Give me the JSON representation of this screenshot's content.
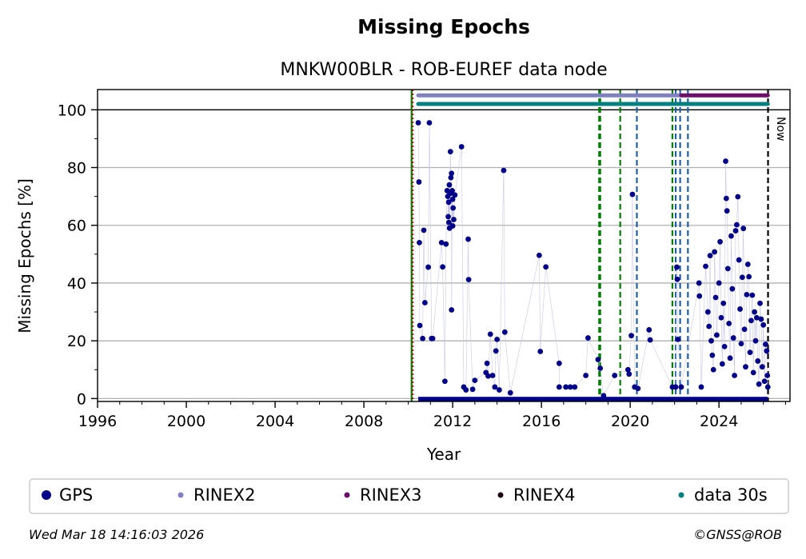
{
  "chart_data": {
    "type": "scatter",
    "title": "Missing Epochs",
    "subtitle": "MNKW00BLR - ROB-EUREF data node",
    "xlabel": "Year",
    "ylabel": "Missing Epochs [%]",
    "xlim": [
      1996,
      2027.2
    ],
    "ylim": [
      -1,
      107
    ],
    "x_ticks": [
      1996,
      2000,
      2004,
      2008,
      2012,
      2016,
      2020,
      2024
    ],
    "y_ticks": [
      0,
      20,
      40,
      60,
      80,
      100
    ],
    "grid": "horizontal",
    "now_label": "Now",
    "now_year": 2026.21,
    "reference_line_y": 100,
    "series": [
      {
        "name": "GPS",
        "color": "#00008b",
        "points": [
          [
            2010.45,
            95.5
          ],
          [
            2010.48,
            75
          ],
          [
            2010.5,
            54
          ],
          [
            2010.52,
            25.3
          ],
          [
            2010.7,
            58.3
          ],
          [
            2010.75,
            33.2
          ],
          [
            2010.65,
            20.8
          ],
          [
            2010.95,
            95.5
          ],
          [
            2010.9,
            45.5
          ],
          [
            2011.05,
            20.8
          ],
          [
            2011.1,
            20.8
          ],
          [
            2011.55,
            45.6
          ],
          [
            2011.5,
            54
          ],
          [
            2011.7,
            53.5
          ],
          [
            2011.65,
            6
          ],
          [
            2011.75,
            72
          ],
          [
            2011.78,
            70
          ],
          [
            2011.82,
            68
          ],
          [
            2011.85,
            74
          ],
          [
            2011.88,
            71
          ],
          [
            2011.8,
            63
          ],
          [
            2011.83,
            61
          ],
          [
            2011.86,
            59
          ],
          [
            2011.9,
            85.5
          ],
          [
            2011.92,
            76.5
          ],
          [
            2011.95,
            78
          ],
          [
            2011.98,
            72
          ],
          [
            2012.0,
            69
          ],
          [
            2012.02,
            66
          ],
          [
            2012.05,
            62
          ],
          [
            2012.0,
            59.8
          ],
          [
            2011.95,
            30.7
          ],
          [
            2012.1,
            70.5
          ],
          [
            2012.4,
            87.2
          ],
          [
            2012.7,
            55.2
          ],
          [
            2012.72,
            41.2
          ],
          [
            2012.5,
            4
          ],
          [
            2012.6,
            3
          ],
          [
            2012.9,
            3.2
          ],
          [
            2013.0,
            6.3
          ],
          [
            2013.5,
            9
          ],
          [
            2013.55,
            12.2
          ],
          [
            2013.6,
            7.8
          ],
          [
            2013.7,
            22.3
          ],
          [
            2013.8,
            8
          ],
          [
            2013.95,
            16.5
          ],
          [
            2014.0,
            20.5
          ],
          [
            2014.3,
            79
          ],
          [
            2014.35,
            23
          ],
          [
            2013.9,
            4
          ],
          [
            2014.1,
            3
          ],
          [
            2014.6,
            2
          ],
          [
            2015.9,
            49.6
          ],
          [
            2015.95,
            16.3
          ],
          [
            2016.2,
            45.6
          ],
          [
            2016.8,
            12.2
          ],
          [
            2016.8,
            4
          ],
          [
            2017.1,
            4
          ],
          [
            2017.3,
            4
          ],
          [
            2017.5,
            4
          ],
          [
            2018.1,
            21
          ],
          [
            2018.0,
            8
          ],
          [
            2018.55,
            13.5
          ],
          [
            2018.65,
            10.5
          ],
          [
            2018.8,
            1
          ],
          [
            2019.3,
            8
          ],
          [
            2019.9,
            10
          ],
          [
            2019.95,
            8.5
          ],
          [
            2020.1,
            70.7
          ],
          [
            2020.05,
            21.8
          ],
          [
            2020.2,
            4
          ],
          [
            2020.35,
            3.5
          ],
          [
            2020.85,
            23.8
          ],
          [
            2020.9,
            20.3
          ],
          [
            2021.9,
            4
          ],
          [
            2022.05,
            4
          ],
          [
            2022.1,
            45.5
          ],
          [
            2022.12,
            41.3
          ],
          [
            2022.15,
            20.5
          ],
          [
            2022.3,
            4
          ],
          [
            2023.1,
            40
          ],
          [
            2023.12,
            35.5
          ],
          [
            2023.2,
            4
          ],
          [
            2023.4,
            45.8
          ],
          [
            2023.6,
            49.5
          ],
          [
            2023.8,
            50.8
          ],
          [
            2024.05,
            54.3
          ],
          [
            2024.3,
            82.2
          ],
          [
            2024.33,
            69.3
          ],
          [
            2024.36,
            65
          ],
          [
            2024.55,
            56.3
          ],
          [
            2024.8,
            60.2
          ],
          [
            2024.75,
            58.1
          ],
          [
            2024.85,
            69.9
          ],
          [
            2025.1,
            58.9
          ],
          [
            2025.3,
            46.5
          ],
          [
            2025.35,
            42.2
          ],
          [
            2025.5,
            35.8
          ],
          [
            2025.6,
            30
          ],
          [
            2025.7,
            28
          ],
          [
            2025.85,
            33
          ],
          [
            2025.9,
            27.5
          ],
          [
            2026.0,
            25.5
          ],
          [
            2026.1,
            18.8
          ],
          [
            2026.15,
            16.5
          ],
          [
            2026.18,
            8
          ],
          [
            2026.2,
            4
          ],
          [
            2023.5,
            30
          ],
          [
            2023.55,
            25
          ],
          [
            2023.65,
            20
          ],
          [
            2023.7,
            15
          ],
          [
            2023.75,
            10
          ],
          [
            2023.85,
            35
          ],
          [
            2023.9,
            22
          ],
          [
            2024.0,
            40
          ],
          [
            2024.1,
            28
          ],
          [
            2024.15,
            12
          ],
          [
            2024.2,
            33
          ],
          [
            2024.25,
            18
          ],
          [
            2024.4,
            45
          ],
          [
            2024.45,
            26
          ],
          [
            2024.5,
            14
          ],
          [
            2024.6,
            38
          ],
          [
            2024.65,
            21
          ],
          [
            2024.7,
            8
          ],
          [
            2024.9,
            48
          ],
          [
            2024.95,
            31
          ],
          [
            2025.0,
            19
          ],
          [
            2025.05,
            42
          ],
          [
            2025.15,
            24
          ],
          [
            2025.2,
            11
          ],
          [
            2025.25,
            36
          ],
          [
            2025.4,
            16
          ],
          [
            2025.45,
            27
          ],
          [
            2025.55,
            9
          ],
          [
            2025.65,
            20
          ],
          [
            2025.75,
            13
          ],
          [
            2025.8,
            5
          ],
          [
            2025.95,
            11
          ],
          [
            2026.05,
            6
          ]
        ]
      },
      {
        "name": "RINEX2",
        "color": "#8080c0",
        "segments": [
          [
            2010.45,
            2018.5
          ],
          [
            2018.6,
            2022.3
          ]
        ],
        "y": 105
      },
      {
        "name": "RINEX3",
        "color": "#6b0f6b",
        "segments": [
          [
            2022.3,
            2026.2
          ]
        ],
        "y": 105
      },
      {
        "name": "RINEX4",
        "color": "#1a0010",
        "segments": [],
        "y": 105
      },
      {
        "name": "data 30s",
        "color": "#008080",
        "segments": [
          [
            2010.45,
            2018.5
          ],
          [
            2018.6,
            2026.2
          ]
        ],
        "y": 102
      }
    ],
    "vertical_lines": [
      {
        "x": 2010.15,
        "color": "#008000",
        "style": "solid"
      },
      {
        "x": 2010.2,
        "color": "#d00000",
        "style": "dotted"
      },
      {
        "x": 2018.6,
        "color": "#008000",
        "style": "dashed"
      },
      {
        "x": 2018.65,
        "color": "#008000",
        "style": "dashed"
      },
      {
        "x": 2019.55,
        "color": "#008000",
        "style": "dashed"
      },
      {
        "x": 2020.3,
        "color": "#1f5fa8",
        "style": "dashed"
      },
      {
        "x": 2021.9,
        "color": "#008000",
        "style": "dashed"
      },
      {
        "x": 2022.05,
        "color": "#1f5fa8",
        "style": "dashed"
      },
      {
        "x": 2022.25,
        "color": "#1f5fa8",
        "style": "dashed"
      },
      {
        "x": 2022.6,
        "color": "#1f5fa8",
        "style": "dashed"
      },
      {
        "x": 2026.21,
        "color": "#000000",
        "style": "dashed"
      }
    ]
  },
  "legend": [
    {
      "label": "GPS",
      "color": "#00008b",
      "size": "large"
    },
    {
      "label": "RINEX2",
      "color": "#8080c0",
      "size": "small"
    },
    {
      "label": "RINEX3",
      "color": "#6b0f6b",
      "size": "small"
    },
    {
      "label": "RINEX4",
      "color": "#1a0010",
      "size": "small"
    },
    {
      "label": "data 30s",
      "color": "#008080",
      "size": "small"
    }
  ],
  "footer": {
    "timestamp": "Wed Mar 18 14:16:03 2026",
    "copyright": "©GNSS@ROB"
  }
}
